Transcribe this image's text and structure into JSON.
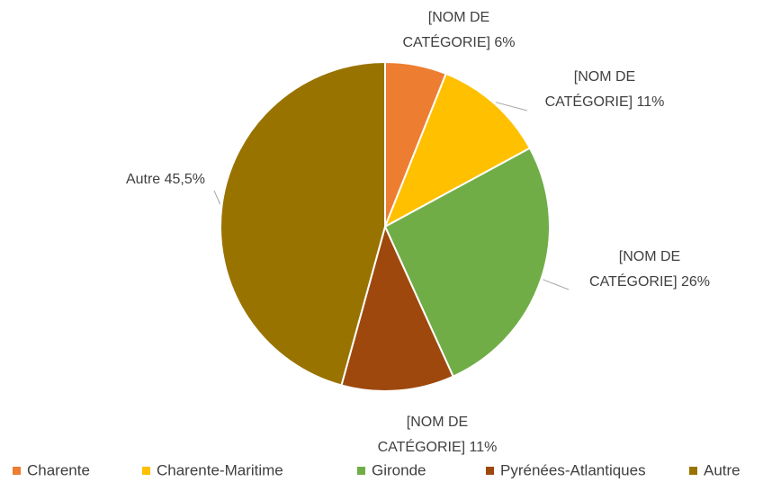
{
  "chart_data": {
    "type": "pie",
    "categories": [
      "Charente",
      "Charente-Maritime",
      "Gironde",
      "Pyrénées-Atlantiques",
      "Autre"
    ],
    "values": [
      6,
      11,
      26,
      11,
      45.5
    ],
    "value_labels": [
      "[NOM DE CATÉGORIE] 6%",
      "[NOM DE CATÉGORIE] 11%",
      "[NOM DE CATÉGORIE] 26%",
      "[NOM DE CATÉGORIE] 11%",
      "Autre 45,5%"
    ],
    "colors": [
      "#ED7D31",
      "#FFC000",
      "#70AD47",
      "#9E480E",
      "#997300"
    ],
    "legend": "bottom"
  }
}
